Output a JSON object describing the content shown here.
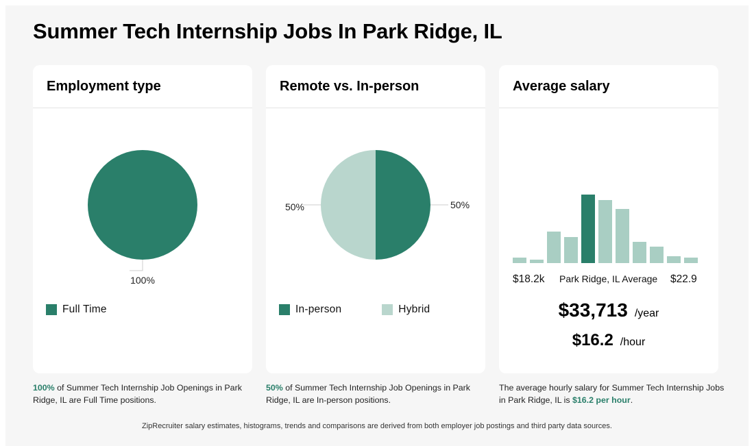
{
  "page": {
    "title": "Summer Tech Internship Jobs In Park Ridge, IL"
  },
  "colors": {
    "primary": "#2a7f6a",
    "secondary": "#b9d6cd",
    "histogram_light": "#a9cec3"
  },
  "employment": {
    "title": "Employment type",
    "caption_pct": "100%",
    "caption_rest": " of Summer Tech Internship Job Openings in Park Ridge, IL are Full Time positions."
  },
  "remote": {
    "title": "Remote vs. In-person",
    "caption_pct": "50%",
    "caption_rest": " of Summer Tech Internship Job Openings in Park Ridge, IL are In-person positions."
  },
  "salary": {
    "title": "Average salary",
    "min_label": "$18.2k",
    "mid_label": "Park Ridge, IL Average",
    "max_label": "$22.9",
    "yearly": "$33,713",
    "yearly_unit": "/year",
    "hourly": "$16.2",
    "hourly_unit": "/hour",
    "caption_pre": "The average hourly salary for Summer Tech Internship Jobs in Park Ridge, IL is ",
    "caption_hl": "$16.2 per hour",
    "caption_post": "."
  },
  "footer": {
    "text": "ZipRecruiter salary estimates, histograms, trends and comparisons are derived from both employer job postings and third party data sources."
  },
  "chart_data": [
    {
      "type": "pie",
      "title": "Employment type",
      "categories": [
        "Full Time"
      ],
      "values": [
        100
      ],
      "labels": [
        "100%"
      ],
      "colors": [
        "#2a7f6a"
      ]
    },
    {
      "type": "pie",
      "title": "Remote vs. In-person",
      "categories": [
        "In-person",
        "Hybrid"
      ],
      "values": [
        50,
        50
      ],
      "labels": [
        "50%",
        "50%"
      ],
      "colors": [
        "#2a7f6a",
        "#b9d6cd"
      ]
    },
    {
      "type": "bar",
      "title": "Average salary",
      "values": [
        8,
        5,
        46,
        38,
        100,
        92,
        79,
        31,
        24,
        10,
        8
      ],
      "highlight_index": 4,
      "xlim_labels": [
        "$18.2k",
        "$22.9"
      ],
      "ylim": [
        0,
        100
      ]
    }
  ]
}
